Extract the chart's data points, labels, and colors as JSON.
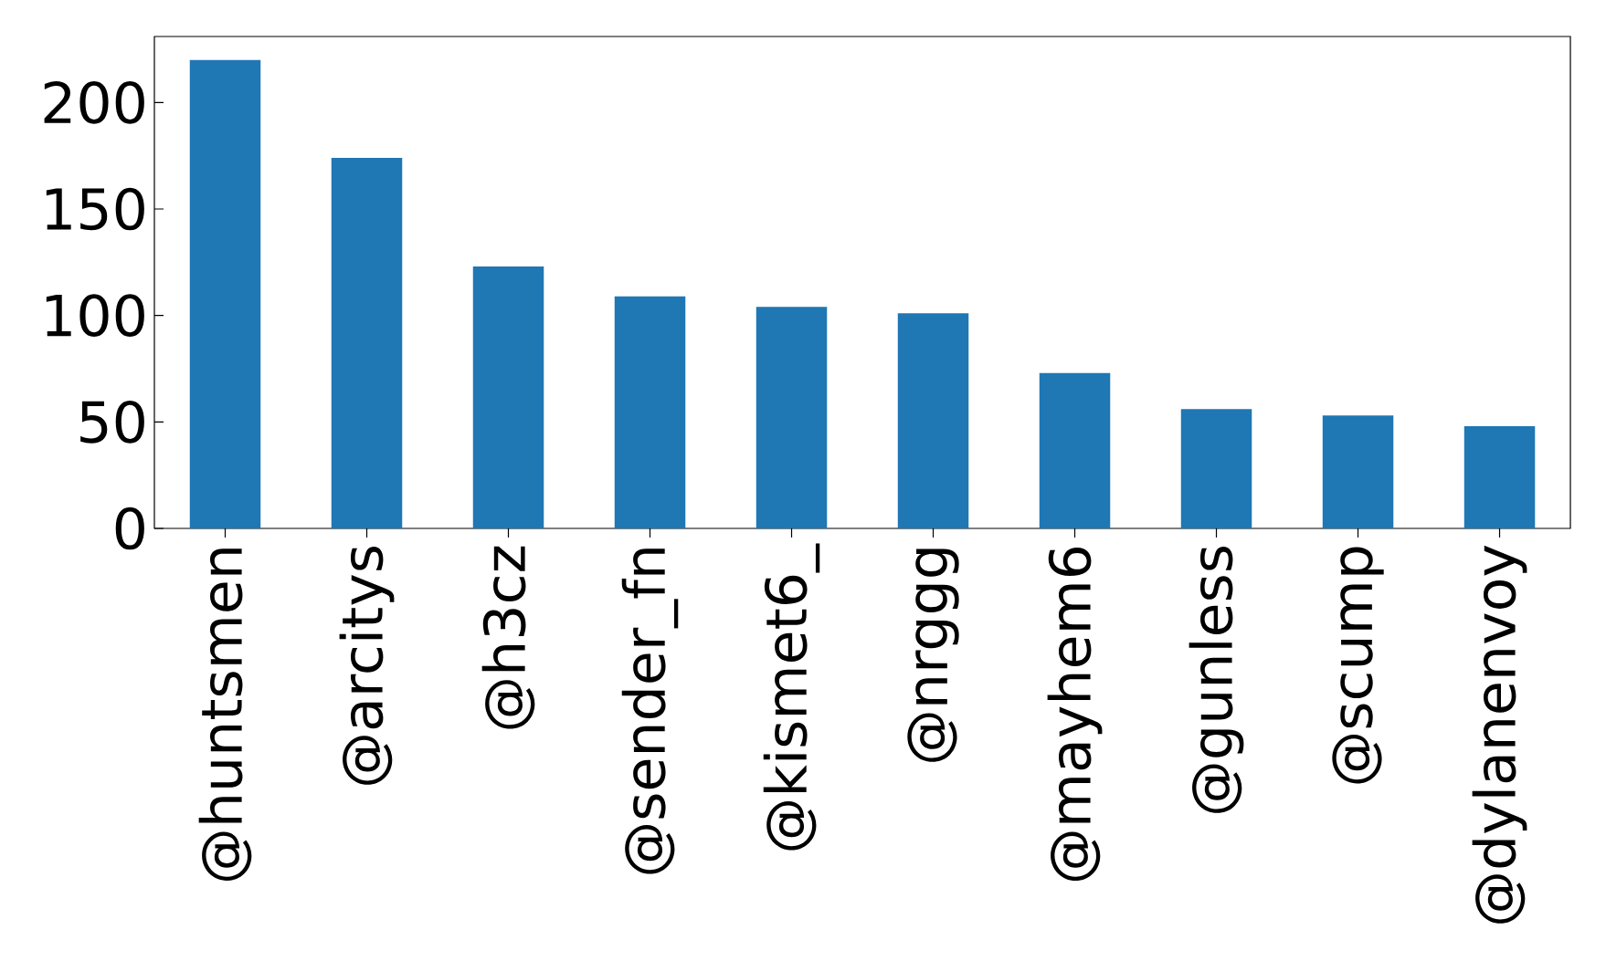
{
  "chart_data": {
    "type": "bar",
    "categories": [
      "@huntsmen",
      "@arcitys",
      "@h3cz",
      "@sender_fn",
      "@kismet6_",
      "@nrggg",
      "@mayhem6",
      "@gunless",
      "@scump",
      "@dylanenvoy"
    ],
    "values": [
      220,
      174,
      123,
      109,
      104,
      101,
      73,
      56,
      53,
      48
    ],
    "color": "#1f77b4",
    "ylim": [
      0,
      231
    ],
    "yticks": [
      0,
      50,
      100,
      150,
      200
    ]
  }
}
